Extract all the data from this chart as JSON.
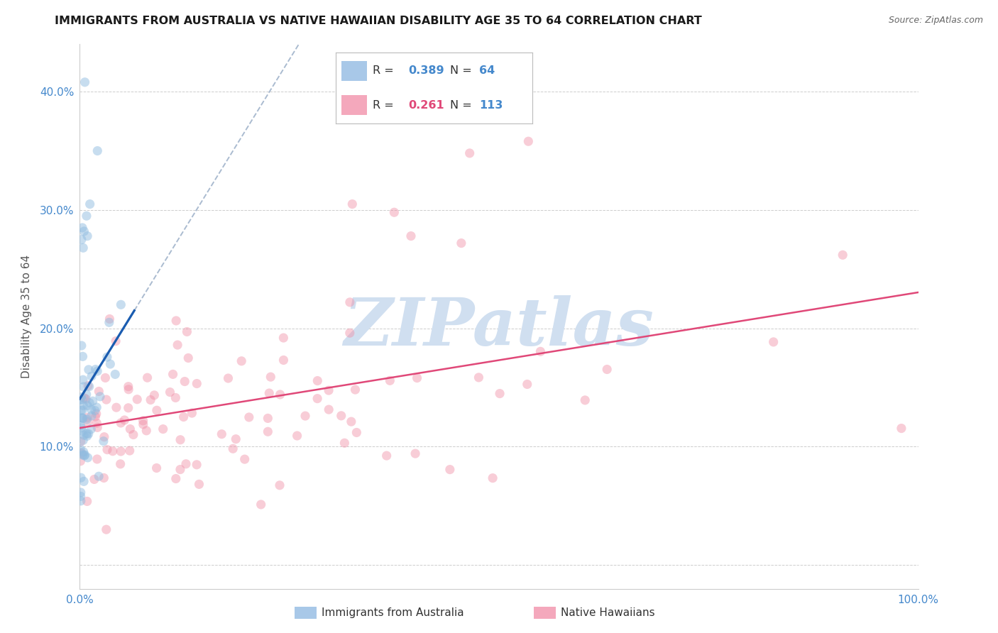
{
  "title": "IMMIGRANTS FROM AUSTRALIA VS NATIVE HAWAIIAN DISABILITY AGE 35 TO 64 CORRELATION CHART",
  "source": "Source: ZipAtlas.com",
  "ylabel": "Disability Age 35 to 64",
  "xmin": 0.0,
  "xmax": 1.0,
  "ymin": -0.02,
  "ymax": 0.44,
  "yticks": [
    0.0,
    0.1,
    0.2,
    0.3,
    0.4
  ],
  "ytick_labels": [
    "",
    "10.0%",
    "20.0%",
    "30.0%",
    "40.0%"
  ],
  "xtick_labels": [
    "0.0%",
    "100.0%"
  ],
  "R_blue": 0.389,
  "N_blue": 64,
  "R_pink": 0.261,
  "N_pink": 113,
  "blue_scatter_color": "#90bce0",
  "pink_scatter_color": "#f090a8",
  "blue_line_color": "#1a5cb0",
  "blue_dash_color": "#aabbd0",
  "pink_line_color": "#e04878",
  "legend_blue_patch": "#a8c8e8",
  "legend_pink_patch": "#f4a8bc",
  "watermark": "ZIPatlas",
  "watermark_color": "#d0dff0",
  "background_color": "#ffffff",
  "grid_color": "#c8c8c8",
  "title_fontsize": 11.5,
  "axis_tick_color": "#4488cc",
  "axis_label_color": "#555555"
}
